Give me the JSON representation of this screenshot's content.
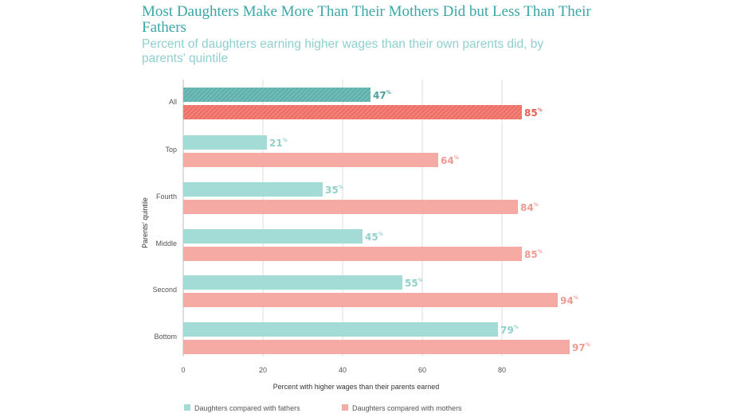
{
  "title": "Most Daughters Make More Than Their Mothers Did but Less Than Their Fathers",
  "subtitle": "Percent of daughters earning higher wages than their own parents did, by parents' quintile",
  "chart_data": {
    "type": "bar",
    "orientation": "horizontal",
    "categories": [
      "All",
      "Top",
      "Fourth",
      "Middle",
      "Second",
      "Bottom"
    ],
    "series": [
      {
        "name": "Daughters compared with fathers",
        "values": [
          47,
          21,
          35,
          45,
          55,
          79
        ]
      },
      {
        "name": "Daughters compared with mothers",
        "values": [
          85,
          64,
          84,
          85,
          94,
          97
        ]
      }
    ],
    "value_suffix": "%",
    "xlabel": "Percent with higher wages than their parents earned",
    "ylabel": "Parents' quintile",
    "xlim": [
      0,
      100
    ],
    "xticks": [
      0,
      20,
      40,
      60,
      80
    ],
    "grid": true,
    "legend_position": "bottom",
    "colors": {
      "fathers": "#a3dcd6",
      "mothers": "#f5aaa4",
      "fathers_highlight": "#5fb2ae",
      "mothers_highlight": "#ef7067",
      "fathers_label": "#8fd0cb",
      "mothers_label": "#ef9a93",
      "fathers_label_highlight": "#4d9f9b",
      "mothers_label_highlight": "#e45f55"
    }
  }
}
